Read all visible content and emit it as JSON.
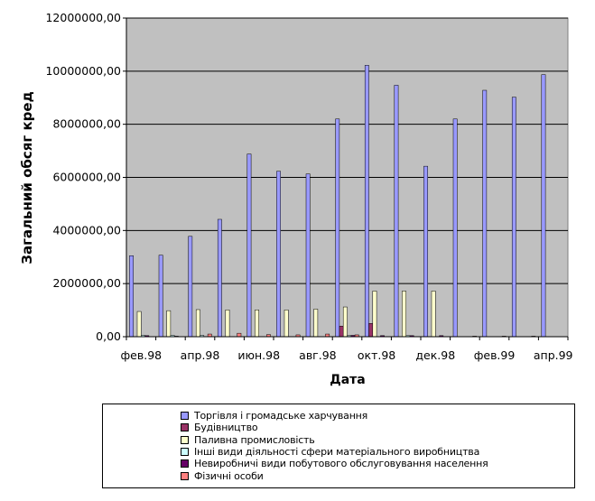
{
  "chart_data": {
    "type": "bar",
    "xlabel": "Дата",
    "ylabel": "Загальний обсяг кред",
    "ylim": [
      0,
      12000000
    ],
    "yticks": [
      "0,00",
      "2000000,00",
      "4000000,00",
      "6000000,00",
      "8000000,00",
      "10000000,00",
      "12000000,00"
    ],
    "ytick_values": [
      0,
      2000000,
      4000000,
      6000000,
      8000000,
      10000000,
      12000000
    ],
    "categories": [
      "фев.98",
      "мар.98",
      "апр.98",
      "май.98",
      "июн.98",
      "июл.98",
      "авг.98",
      "сен.98",
      "окт.98",
      "ноя.98",
      "дек.98",
      "янв.99",
      "фев.99",
      "мар.99",
      "апр.99"
    ],
    "xtick_labels": [
      "фев.98",
      "",
      "апр.98",
      "",
      "июн.98",
      "",
      "авг.98",
      "",
      "окт.98",
      "",
      "дек.98",
      "",
      "фев.99",
      "",
      "апр.99"
    ],
    "grid": true,
    "legend_position": "bottom",
    "plot_background": "#c0c0c0",
    "series": [
      {
        "name": "Торгівля і громадське харчування",
        "color": "#9999ff",
        "values": [
          3050000,
          3070000,
          3780000,
          4420000,
          6880000,
          6230000,
          6130000,
          8200000,
          10220000,
          9470000,
          6420000,
          8200000,
          9280000,
          9020000,
          9870000
        ]
      },
      {
        "name": "Будівництво",
        "color": "#993366",
        "values": [
          0,
          0,
          0,
          0,
          0,
          0,
          0,
          400000,
          500000,
          0,
          0,
          0,
          0,
          0,
          0
        ]
      },
      {
        "name": "Паливна промисловість",
        "color": "#ffffcc",
        "values": [
          950000,
          980000,
          1020000,
          1010000,
          1010000,
          1010000,
          1040000,
          1120000,
          1720000,
          1720000,
          1720000,
          0,
          0,
          0,
          0
        ]
      },
      {
        "name": "Інші види діяльності сфери матеріального виробництва",
        "color": "#ccffff",
        "values": [
          50000,
          50000,
          50000,
          0,
          0,
          0,
          0,
          40000,
          0,
          40000,
          0,
          0,
          0,
          0,
          0
        ]
      },
      {
        "name": "Невиробничі види побутового обслуговування населення",
        "color": "#660066",
        "values": [
          40000,
          20000,
          0,
          0,
          0,
          0,
          0,
          50000,
          40000,
          40000,
          40000,
          0,
          0,
          0,
          0
        ]
      },
      {
        "name": "Фізичні особи",
        "color": "#ff8080",
        "values": [
          0,
          0,
          100000,
          130000,
          80000,
          70000,
          100000,
          70000,
          0,
          0,
          0,
          20000,
          20000,
          20000,
          0
        ]
      }
    ]
  }
}
